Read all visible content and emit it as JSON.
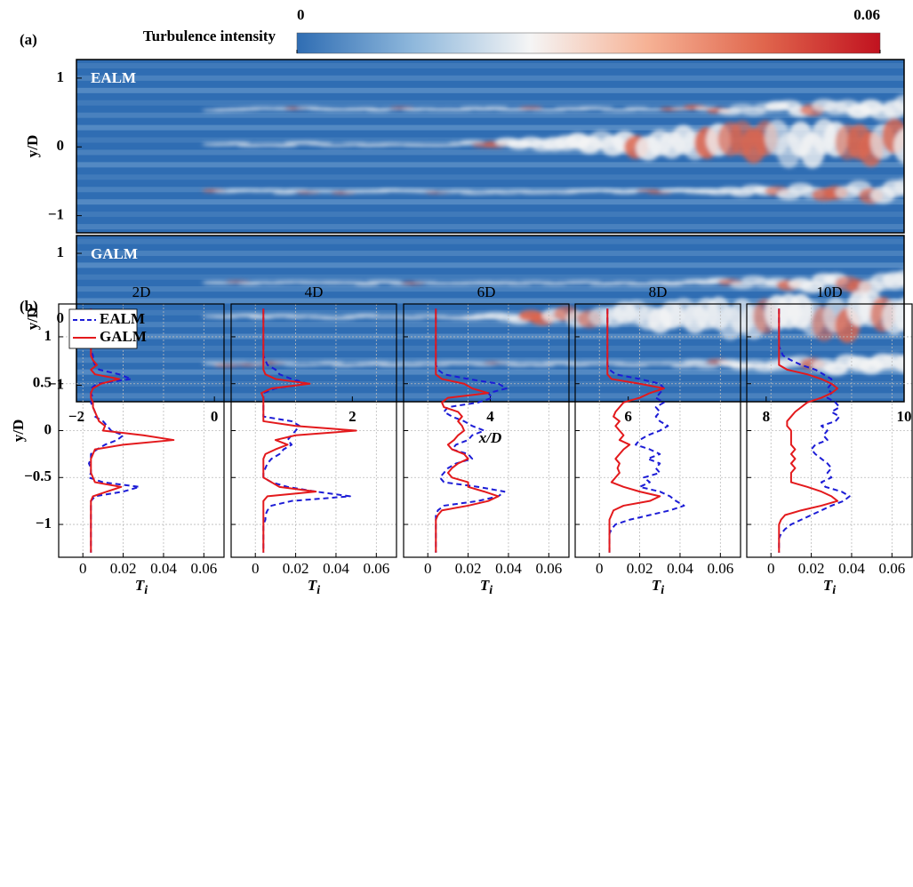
{
  "panel_a_label": "(a)",
  "panel_b_label": "(b)",
  "chart_data": [
    {
      "type": "heatmap",
      "title": "EALM",
      "ylabel": "y/D",
      "xlim": [
        -2,
        10
      ],
      "ylim": [
        -1.25,
        1.27
      ],
      "yticks": [
        {
          "value": -1,
          "label": "−1"
        },
        0,
        1
      ],
      "colorbar": {
        "title": "Turbulence intensity",
        "ticks": [
          0,
          0.06
        ],
        "colors": [
          "#2f6db3",
          "#8fb8dc",
          "#f5f5f5",
          "#f6b295",
          "#e0664d",
          "#c1121f"
        ]
      }
    },
    {
      "type": "heatmap",
      "title": "GALM",
      "ylabel": "y/D",
      "xlabel": "x/D",
      "xlim": [
        -2,
        10
      ],
      "ylim": [
        -1.25,
        1.27
      ],
      "xticks": [
        {
          "value": -2,
          "label": "−2"
        },
        0,
        2,
        4,
        6,
        8,
        10
      ],
      "yticks": [
        {
          "value": -1,
          "label": "−1"
        },
        0,
        1
      ]
    },
    {
      "type": "line",
      "title": "2D",
      "ylabel": "y/D",
      "xlabel": "T",
      "xlabel_subscript": "i",
      "legend": "upper left",
      "ytick_labels": true,
      "grid": true,
      "xlim": [
        -0.012,
        0.07
      ],
      "ylim": [
        -1.35,
        1.35
      ],
      "xticks": [
        0,
        0.02,
        0.04,
        0.06
      ],
      "yticks": [
        {
          "value": -1,
          "label": "−1"
        },
        {
          "value": -0.5,
          "label": "−0.5"
        },
        0,
        0.5,
        1
      ],
      "y": [
        1.3,
        1.25,
        1.2,
        1.15,
        1.1,
        1.05,
        1.0,
        0.95,
        0.9,
        0.85,
        0.8,
        0.75,
        0.7,
        0.65,
        0.6,
        0.55,
        0.5,
        0.45,
        0.4,
        0.35,
        0.3,
        0.25,
        0.2,
        0.15,
        0.1,
        0.05,
        0,
        -0.05,
        -0.1,
        -0.15,
        -0.2,
        -0.25,
        -0.3,
        -0.35,
        -0.4,
        -0.45,
        -0.5,
        -0.55,
        -0.6,
        -0.65,
        -0.7,
        -0.75,
        -0.8,
        -0.85,
        -0.9,
        -0.95,
        -1.0,
        -1.05,
        -1.1,
        -1.15,
        -1.2,
        -1.25,
        -1.3
      ],
      "series": [
        {
          "name": "EALM",
          "color": "#1c1cd6",
          "dashed": true,
          "values": [
            0.004,
            0.004,
            0.004,
            0.004,
            0.004,
            0.004,
            0.004,
            0.004,
            0.004,
            0.004,
            0.005,
            0.005,
            0.006,
            0.008,
            0.018,
            0.024,
            0.007,
            0.004,
            0.004,
            0.005,
            0.004,
            0.005,
            0.006,
            0.006,
            0.01,
            0.012,
            0.014,
            0.02,
            0.017,
            0.011,
            0.007,
            0.004,
            0.004,
            0.003,
            0.004,
            0.004,
            0.003,
            0.01,
            0.028,
            0.02,
            0.006,
            0.004,
            0.004,
            0.004,
            0.004,
            0.004,
            0.004,
            0.004,
            0.004,
            0.004,
            0.004,
            0.004,
            0.004
          ]
        },
        {
          "name": "GALM",
          "color": "#e3191c",
          "dashed": false,
          "values": [
            0.004,
            0.004,
            0.004,
            0.004,
            0.004,
            0.004,
            0.004,
            0.004,
            0.004,
            0.004,
            0.004,
            0.005,
            0.007,
            0.004,
            0.006,
            0.018,
            0.009,
            0.005,
            0.004,
            0.004,
            0.005,
            0.005,
            0.006,
            0.007,
            0.008,
            0.011,
            0.01,
            0.03,
            0.045,
            0.02,
            0.006,
            0.005,
            0.004,
            0.004,
            0.004,
            0.004,
            0.005,
            0.006,
            0.019,
            0.012,
            0.005,
            0.004,
            0.004,
            0.004,
            0.004,
            0.004,
            0.004,
            0.004,
            0.004,
            0.004,
            0.004,
            0.004,
            0.004
          ]
        }
      ]
    },
    {
      "type": "line",
      "title": "4D",
      "xlabel": "T",
      "xlabel_subscript": "i",
      "ytick_labels": false,
      "grid": true,
      "xlim": [
        -0.012,
        0.07
      ],
      "ylim": [
        -1.35,
        1.35
      ],
      "xticks": [
        0,
        0.02,
        0.04,
        0.06
      ],
      "yticks": [
        -1,
        -0.5,
        0,
        0.5,
        1
      ],
      "y": [
        1.3,
        1.25,
        1.2,
        1.15,
        1.1,
        1.05,
        1.0,
        0.95,
        0.9,
        0.85,
        0.8,
        0.75,
        0.7,
        0.65,
        0.6,
        0.55,
        0.5,
        0.45,
        0.4,
        0.35,
        0.3,
        0.25,
        0.2,
        0.15,
        0.1,
        0.05,
        0,
        -0.05,
        -0.1,
        -0.15,
        -0.2,
        -0.25,
        -0.3,
        -0.35,
        -0.4,
        -0.45,
        -0.5,
        -0.55,
        -0.6,
        -0.65,
        -0.7,
        -0.75,
        -0.8,
        -0.85,
        -0.9,
        -0.95,
        -1.0,
        -1.05,
        -1.1,
        -1.15,
        -1.2,
        -1.25,
        -1.3
      ],
      "series": [
        {
          "name": "EALM",
          "color": "#1c1cd6",
          "dashed": true,
          "values": [
            0.004,
            0.004,
            0.004,
            0.004,
            0.004,
            0.004,
            0.004,
            0.004,
            0.004,
            0.004,
            0.004,
            0.005,
            0.006,
            0.01,
            0.012,
            0.018,
            0.026,
            0.01,
            0.004,
            0.004,
            0.004,
            0.004,
            0.004,
            0.004,
            0.018,
            0.022,
            0.02,
            0.018,
            0.016,
            0.018,
            0.014,
            0.012,
            0.008,
            0.006,
            0.005,
            0.004,
            0.004,
            0.008,
            0.016,
            0.03,
            0.047,
            0.018,
            0.008,
            0.006,
            0.005,
            0.005,
            0.004,
            0.004,
            0.004,
            0.004,
            0.004,
            0.004,
            0.004
          ]
        },
        {
          "name": "GALM",
          "color": "#e3191c",
          "dashed": false,
          "values": [
            0.004,
            0.004,
            0.004,
            0.004,
            0.004,
            0.004,
            0.004,
            0.004,
            0.004,
            0.004,
            0.004,
            0.004,
            0.004,
            0.004,
            0.005,
            0.01,
            0.027,
            0.008,
            0.003,
            0.004,
            0.004,
            0.004,
            0.004,
            0.004,
            0.004,
            0.02,
            0.05,
            0.02,
            0.01,
            0.016,
            0.01,
            0.005,
            0.004,
            0.004,
            0.004,
            0.004,
            0.004,
            0.008,
            0.012,
            0.03,
            0.006,
            0.004,
            0.004,
            0.004,
            0.004,
            0.004,
            0.004,
            0.004,
            0.004,
            0.004,
            0.004,
            0.004,
            0.004
          ]
        }
      ]
    },
    {
      "type": "line",
      "title": "6D",
      "xlabel": "T",
      "xlabel_subscript": "i",
      "ytick_labels": false,
      "grid": true,
      "xlim": [
        -0.012,
        0.07
      ],
      "ylim": [
        -1.35,
        1.35
      ],
      "xticks": [
        0,
        0.02,
        0.04,
        0.06
      ],
      "yticks": [
        -1,
        -0.5,
        0,
        0.5,
        1
      ],
      "y": [
        1.3,
        1.25,
        1.2,
        1.15,
        1.1,
        1.05,
        1.0,
        0.95,
        0.9,
        0.85,
        0.8,
        0.75,
        0.7,
        0.65,
        0.6,
        0.55,
        0.5,
        0.45,
        0.4,
        0.35,
        0.3,
        0.25,
        0.2,
        0.15,
        0.1,
        0.05,
        0,
        -0.05,
        -0.1,
        -0.15,
        -0.2,
        -0.25,
        -0.3,
        -0.35,
        -0.4,
        -0.45,
        -0.5,
        -0.55,
        -0.6,
        -0.65,
        -0.7,
        -0.75,
        -0.8,
        -0.85,
        -0.9,
        -0.95,
        -1.0,
        -1.05,
        -1.1,
        -1.15,
        -1.2,
        -1.25,
        -1.3
      ],
      "series": [
        {
          "name": "EALM",
          "color": "#1c1cd6",
          "dashed": true,
          "values": [
            0.004,
            0.004,
            0.004,
            0.004,
            0.004,
            0.004,
            0.004,
            0.004,
            0.004,
            0.004,
            0.004,
            0.004,
            0.004,
            0.005,
            0.008,
            0.02,
            0.035,
            0.039,
            0.03,
            0.032,
            0.025,
            0.01,
            0.008,
            0.012,
            0.018,
            0.022,
            0.028,
            0.022,
            0.02,
            0.014,
            0.012,
            0.02,
            0.022,
            0.014,
            0.01,
            0.008,
            0.006,
            0.008,
            0.025,
            0.038,
            0.035,
            0.025,
            0.008,
            0.005,
            0.004,
            0.004,
            0.004,
            0.004,
            0.004,
            0.004,
            0.004,
            0.004,
            0.004
          ]
        },
        {
          "name": "GALM",
          "color": "#e3191c",
          "dashed": false,
          "values": [
            0.004,
            0.004,
            0.004,
            0.004,
            0.004,
            0.004,
            0.004,
            0.004,
            0.004,
            0.004,
            0.004,
            0.004,
            0.004,
            0.004,
            0.004,
            0.007,
            0.018,
            0.022,
            0.03,
            0.01,
            0.007,
            0.008,
            0.015,
            0.017,
            0.015,
            0.017,
            0.018,
            0.015,
            0.013,
            0.01,
            0.012,
            0.018,
            0.02,
            0.015,
            0.012,
            0.01,
            0.012,
            0.02,
            0.02,
            0.028,
            0.035,
            0.03,
            0.02,
            0.007,
            0.005,
            0.004,
            0.004,
            0.004,
            0.004,
            0.004,
            0.004,
            0.004,
            0.004
          ]
        }
      ]
    },
    {
      "type": "line",
      "title": "8D",
      "xlabel": "T",
      "xlabel_subscript": "i",
      "ytick_labels": false,
      "grid": true,
      "xlim": [
        -0.012,
        0.07
      ],
      "ylim": [
        -1.35,
        1.35
      ],
      "xticks": [
        0,
        0.02,
        0.04,
        0.06
      ],
      "yticks": [
        -1,
        -0.5,
        0,
        0.5,
        1
      ],
      "y": [
        1.3,
        1.25,
        1.2,
        1.15,
        1.1,
        1.05,
        1.0,
        0.95,
        0.9,
        0.85,
        0.8,
        0.75,
        0.7,
        0.65,
        0.6,
        0.55,
        0.5,
        0.45,
        0.4,
        0.35,
        0.3,
        0.25,
        0.2,
        0.15,
        0.1,
        0.05,
        0,
        -0.05,
        -0.1,
        -0.15,
        -0.2,
        -0.25,
        -0.3,
        -0.35,
        -0.4,
        -0.45,
        -0.5,
        -0.55,
        -0.6,
        -0.65,
        -0.7,
        -0.75,
        -0.8,
        -0.85,
        -0.9,
        -0.95,
        -1.0,
        -1.05,
        -1.1,
        -1.15,
        -1.2,
        -1.25,
        -1.3
      ],
      "series": [
        {
          "name": "EALM",
          "color": "#1c1cd6",
          "dashed": true,
          "values": [
            0.004,
            0.004,
            0.004,
            0.004,
            0.004,
            0.004,
            0.004,
            0.004,
            0.004,
            0.004,
            0.004,
            0.004,
            0.004,
            0.005,
            0.008,
            0.02,
            0.03,
            0.032,
            0.03,
            0.028,
            0.032,
            0.028,
            0.03,
            0.028,
            0.03,
            0.034,
            0.03,
            0.024,
            0.02,
            0.018,
            0.025,
            0.03,
            0.024,
            0.03,
            0.028,
            0.03,
            0.022,
            0.025,
            0.02,
            0.03,
            0.035,
            0.038,
            0.042,
            0.035,
            0.025,
            0.015,
            0.008,
            0.006,
            0.005,
            0.005,
            0.005,
            0.005,
            0.005
          ]
        },
        {
          "name": "GALM",
          "color": "#e3191c",
          "dashed": false,
          "values": [
            0.004,
            0.004,
            0.004,
            0.004,
            0.004,
            0.004,
            0.004,
            0.004,
            0.004,
            0.004,
            0.004,
            0.004,
            0.004,
            0.004,
            0.004,
            0.006,
            0.02,
            0.032,
            0.025,
            0.02,
            0.012,
            0.01,
            0.008,
            0.007,
            0.01,
            0.008,
            0.01,
            0.012,
            0.01,
            0.015,
            0.012,
            0.01,
            0.008,
            0.01,
            0.009,
            0.01,
            0.008,
            0.006,
            0.012,
            0.02,
            0.03,
            0.025,
            0.012,
            0.007,
            0.006,
            0.005,
            0.005,
            0.005,
            0.005,
            0.005,
            0.005,
            0.005,
            0.005
          ]
        }
      ]
    },
    {
      "type": "line",
      "title": "10D",
      "xlabel": "T",
      "xlabel_subscript": "i",
      "ytick_labels": false,
      "grid": true,
      "xlim": [
        -0.012,
        0.07
      ],
      "ylim": [
        -1.35,
        1.35
      ],
      "xticks": [
        0,
        0.02,
        0.04,
        0.06
      ],
      "yticks": [
        -1,
        -0.5,
        0,
        0.5,
        1
      ],
      "y": [
        1.3,
        1.25,
        1.2,
        1.15,
        1.1,
        1.05,
        1.0,
        0.95,
        0.9,
        0.85,
        0.8,
        0.75,
        0.7,
        0.65,
        0.6,
        0.55,
        0.5,
        0.45,
        0.4,
        0.35,
        0.3,
        0.25,
        0.2,
        0.15,
        0.1,
        0.05,
        0,
        -0.05,
        -0.1,
        -0.15,
        -0.2,
        -0.25,
        -0.3,
        -0.35,
        -0.4,
        -0.45,
        -0.5,
        -0.55,
        -0.6,
        -0.65,
        -0.7,
        -0.75,
        -0.8,
        -0.85,
        -0.9,
        -0.95,
        -1.0,
        -1.05,
        -1.1,
        -1.15,
        -1.2,
        -1.25,
        -1.3
      ],
      "series": [
        {
          "name": "EALM",
          "color": "#1c1cd6",
          "dashed": true,
          "values": [
            0.004,
            0.004,
            0.004,
            0.004,
            0.004,
            0.004,
            0.004,
            0.004,
            0.004,
            0.005,
            0.006,
            0.01,
            0.015,
            0.022,
            0.026,
            0.03,
            0.03,
            0.028,
            0.03,
            0.028,
            0.032,
            0.034,
            0.03,
            0.034,
            0.032,
            0.025,
            0.028,
            0.026,
            0.028,
            0.022,
            0.02,
            0.022,
            0.025,
            0.028,
            0.03,
            0.028,
            0.03,
            0.025,
            0.027,
            0.035,
            0.039,
            0.036,
            0.03,
            0.025,
            0.02,
            0.015,
            0.01,
            0.007,
            0.005,
            0.004,
            0.004,
            0.004,
            0.004
          ]
        },
        {
          "name": "GALM",
          "color": "#e3191c",
          "dashed": false,
          "values": [
            0.004,
            0.004,
            0.004,
            0.004,
            0.004,
            0.004,
            0.004,
            0.004,
            0.004,
            0.004,
            0.004,
            0.004,
            0.004,
            0.008,
            0.018,
            0.025,
            0.03,
            0.033,
            0.03,
            0.025,
            0.018,
            0.015,
            0.012,
            0.01,
            0.008,
            0.008,
            0.01,
            0.01,
            0.01,
            0.01,
            0.012,
            0.01,
            0.012,
            0.01,
            0.012,
            0.01,
            0.01,
            0.01,
            0.018,
            0.025,
            0.03,
            0.033,
            0.025,
            0.015,
            0.007,
            0.005,
            0.004,
            0.004,
            0.004,
            0.004,
            0.004,
            0.004,
            0.004
          ]
        }
      ]
    }
  ]
}
